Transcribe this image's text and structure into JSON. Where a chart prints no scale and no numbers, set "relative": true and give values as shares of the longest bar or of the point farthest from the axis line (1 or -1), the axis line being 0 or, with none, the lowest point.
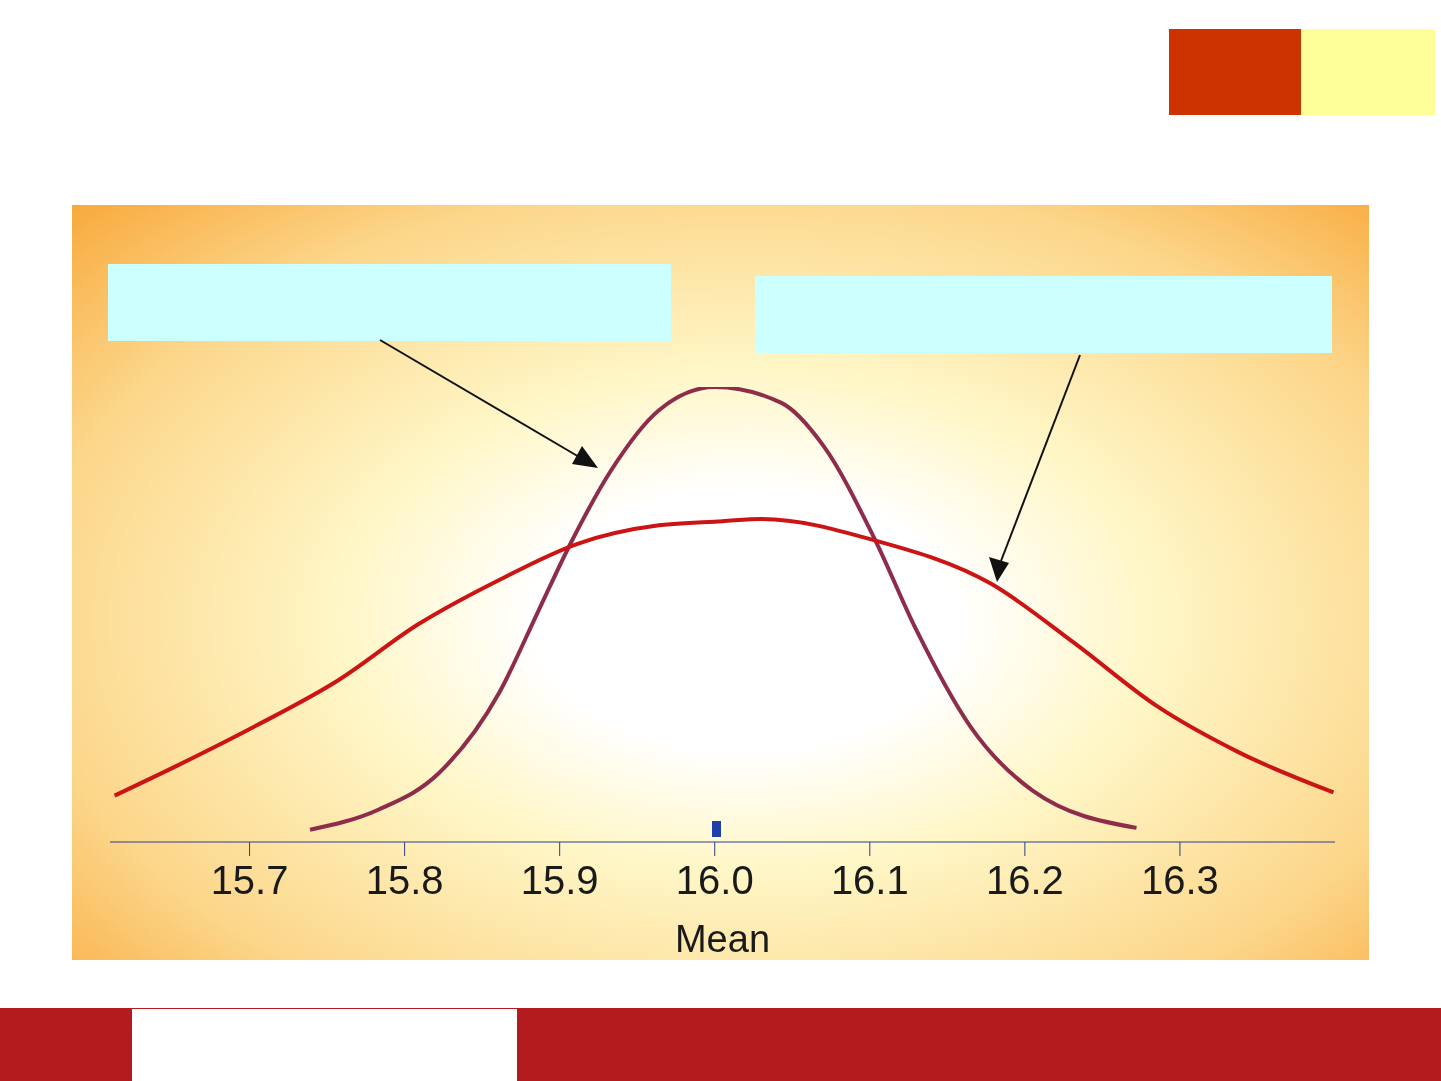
{
  "chart_data": {
    "type": "line",
    "xlabel": "Mean",
    "relative": true,
    "xlim": [
      15.61,
      16.4
    ],
    "xticks": [
      {
        "value": 15.7,
        "label": "15.7"
      },
      {
        "value": 15.8,
        "label": "15.8"
      },
      {
        "value": 15.9,
        "label": "15.9"
      },
      {
        "value": 16,
        "label": "16.0"
      },
      {
        "value": 16.1,
        "label": "16.1"
      },
      {
        "value": 16.2,
        "label": "16.2"
      },
      {
        "value": 16.3,
        "label": "16.3"
      }
    ],
    "grid": false,
    "legend": false,
    "marker": "none",
    "line_style": "solid",
    "series": [
      {
        "color": "#8e2c4c",
        "x": [
          15.739,
          15.783,
          15.822,
          15.861,
          15.886,
          15.907,
          15.933,
          15.964,
          16.0,
          16.043,
          16.07,
          16.103,
          16.13,
          16.165,
          16.205,
          16.272
        ],
        "values": [
          0.027,
          0.071,
          0.151,
          0.328,
          0.506,
          0.656,
          0.816,
          0.949,
          1,
          0.965,
          0.871,
          0.667,
          0.466,
          0.253,
          0.113,
          0.031
        ]
      },
      {
        "color": "#cc1414",
        "x": [
          15.613,
          15.654,
          15.705,
          15.757,
          15.809,
          15.861,
          15.912,
          15.964,
          16.005,
          16.03,
          16.103,
          16.178,
          16.232,
          16.285,
          16.338,
          16.399
        ],
        "values": [
          0.102,
          0.169,
          0.257,
          0.355,
          0.479,
          0.576,
          0.656,
          0.696,
          0.705,
          0.71,
          0.663,
          0.568,
          0.437,
          0.299,
          0.197,
          0.109
        ]
      }
    ]
  }
}
